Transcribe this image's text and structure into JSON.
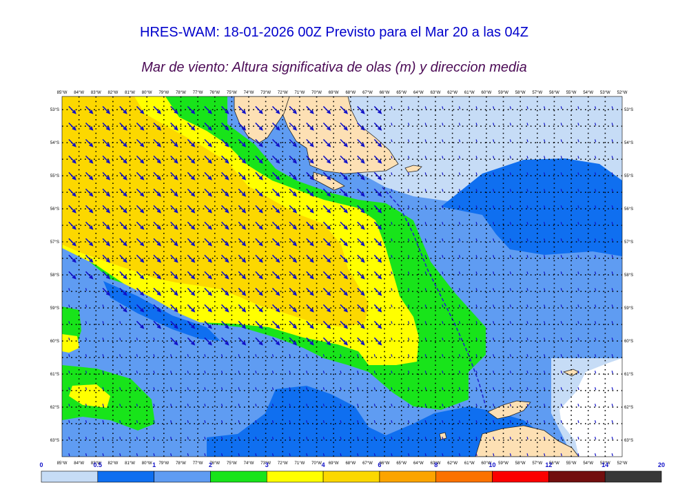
{
  "title": "HRES-WAM: 18-01-2026 00Z Previsto para el Mar 20 a las 04Z",
  "subtitle": "Mar de viento: Altura significativa de olas (m) y direccion media",
  "chart_data": {
    "type": "heatmap",
    "lon_labels": [
      "85°W",
      "84°W",
      "83°W",
      "82°W",
      "81°W",
      "80°W",
      "79°W",
      "78°W",
      "77°W",
      "76°W",
      "75°W",
      "74°W",
      "73°W",
      "72°W",
      "71°W",
      "70°W",
      "69°W",
      "68°W",
      "67°W",
      "66°W",
      "65°W",
      "64°W",
      "63°W",
      "62°W",
      "61°W",
      "60°W",
      "59°W",
      "58°W",
      "57°W",
      "56°W",
      "55°W",
      "54°W",
      "53°W",
      "52°W"
    ],
    "lat_labels": [
      "53°S",
      "54°S",
      "55°S",
      "56°S",
      "57°S",
      "58°S",
      "59°S",
      "60°S",
      "61°S",
      "62°S",
      "63°S"
    ],
    "lon_range": [
      -85,
      -52
    ],
    "lat_range": [
      -63.5,
      -52.6
    ],
    "colorbar": {
      "levels": [
        0,
        0.5,
        1,
        2,
        3,
        4,
        6,
        8,
        10,
        12,
        14,
        20
      ],
      "level_labels": [
        "0",
        "0.5",
        "1",
        "2",
        "3",
        "4",
        "6",
        "8",
        "10",
        "12",
        "14",
        "20"
      ],
      "colors": [
        "#c6dcf6",
        "#0f6ff0",
        "#5f9cf2",
        "#18e41a",
        "#ffff00",
        "#fcd800",
        "#fca400",
        "#fc7200",
        "#fc0000",
        "#720e0e",
        "#383838"
      ]
    },
    "colors": {
      "land": "#fde0b4",
      "ice": "#ffffff",
      "arrows": "#1010c8",
      "dashed_line": "#2222cc"
    }
  }
}
